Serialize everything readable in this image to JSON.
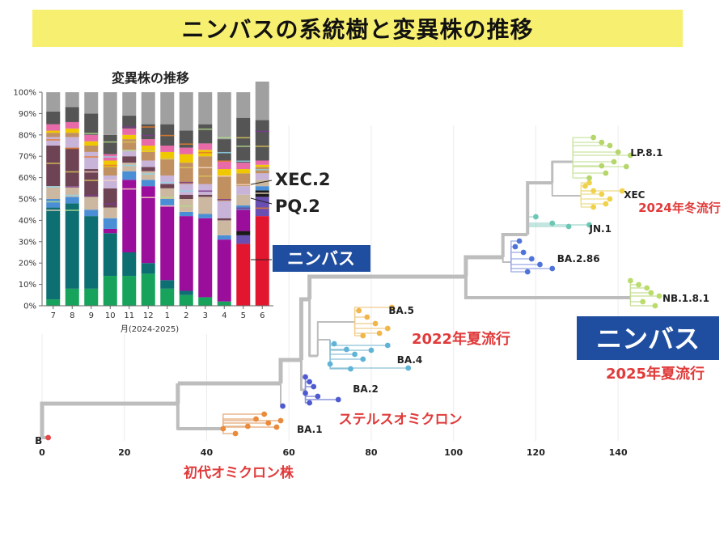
{
  "title": "ニンバスの系統樹と変異株の推移",
  "colors": {
    "title_bg": "#f7ef70",
    "tree_branch": "#bdbdbd",
    "label_red": "#e03a3a",
    "nimbus_box": "#1f4ea0",
    "nimbus_bar": "#e2172f",
    "pq2": "#6a4fb3",
    "xec2": "#1a1a1a"
  },
  "chart_data": [
    {
      "type": "bar",
      "stacked": true,
      "title": "変異株の推移",
      "xlabel": "月(2024-2025)",
      "ylabel": "",
      "ylim": [
        0,
        100
      ],
      "y_ticks": [
        "0%",
        "10%",
        "20%",
        "30%",
        "40%",
        "50%",
        "60%",
        "70%",
        "80%",
        "90%",
        "100%"
      ],
      "categories": [
        "7",
        "8",
        "9",
        "10",
        "11",
        "12",
        "1",
        "2",
        "3",
        "4",
        "5",
        "6"
      ],
      "series": [
        {
          "color": "#e2172f",
          "values": [
            0,
            0,
            0,
            0,
            0,
            0,
            0,
            0,
            0,
            0,
            29,
            42
          ]
        },
        {
          "color": "#6a4fb3",
          "values": [
            0,
            0,
            0,
            0,
            0,
            0,
            0,
            0,
            0,
            0,
            4,
            9
          ]
        },
        {
          "color": "#1a1a1a",
          "values": [
            0,
            0,
            0,
            0,
            0,
            0,
            0,
            0,
            0,
            0,
            2,
            3
          ]
        },
        {
          "color": "#17a35c",
          "values": [
            3,
            8,
            8,
            14,
            14,
            15,
            8,
            5,
            4,
            2,
            0,
            0
          ]
        },
        {
          "color": "#0e6f72",
          "values": [
            43,
            40,
            34,
            20,
            11,
            5,
            4,
            2,
            0,
            0,
            0,
            0
          ]
        },
        {
          "color": "#9b0e9b",
          "values": [
            0,
            0,
            0,
            2,
            34,
            36,
            35,
            35,
            37,
            29,
            10,
            0
          ]
        },
        {
          "color": "#4a8fd6",
          "values": [
            4,
            3,
            3,
            5,
            4,
            3,
            3,
            2,
            2,
            2,
            2,
            2
          ]
        },
        {
          "color": "#ccb8a0",
          "values": [
            6,
            5,
            6,
            5,
            4,
            4,
            5,
            6,
            8,
            7,
            5,
            3
          ]
        },
        {
          "color": "#6e4455",
          "values": [
            19,
            18,
            13,
            9,
            3,
            2,
            2,
            2,
            1,
            1,
            0,
            0
          ]
        },
        {
          "color": "#c9b4d9",
          "values": [
            4,
            5,
            8,
            6,
            3,
            3,
            4,
            5,
            5,
            8,
            4,
            3
          ]
        },
        {
          "color": "#c09060",
          "values": [
            2,
            2,
            3,
            4,
            5,
            4,
            8,
            10,
            13,
            12,
            6,
            3
          ]
        },
        {
          "color": "#f0c800",
          "values": [
            1,
            2,
            2,
            3,
            2,
            3,
            3,
            4,
            3,
            3,
            2,
            1
          ]
        },
        {
          "color": "#e86aa8",
          "values": [
            3,
            3,
            3,
            3,
            3,
            3,
            3,
            3,
            3,
            4,
            3,
            2
          ]
        },
        {
          "color": "#555555",
          "values": [
            6,
            7,
            10,
            9,
            6,
            7,
            10,
            8,
            9,
            10,
            21,
            19
          ]
        },
        {
          "color": "#a0a0a0",
          "values": [
            9,
            7,
            10,
            20,
            11,
            15,
            15,
            18,
            15,
            22,
            12,
            18
          ]
        }
      ],
      "annotations": [
        "XEC.2",
        "PQ.2",
        "ニンバス"
      ]
    },
    {
      "type": "tree",
      "x_ticks": [
        0,
        20,
        40,
        60,
        80,
        100,
        120,
        140
      ],
      "xlim": [
        0,
        150
      ],
      "clades": [
        {
          "label": "B",
          "x": 1
        },
        {
          "label": "BA.1",
          "x": 58
        },
        {
          "label": "BA.2",
          "x": 72
        },
        {
          "label": "BA.4",
          "x": 89
        },
        {
          "label": "BA.5",
          "x": 85
        },
        {
          "label": "BA.2.86",
          "x": 124
        },
        {
          "label": "JN.1",
          "x": 133
        },
        {
          "label": "XEC",
          "x": 141
        },
        {
          "label": "LP.8.1",
          "x": 143
        },
        {
          "label": "NB.1.8.1",
          "x": 150
        }
      ],
      "annotations": [
        {
          "text": "初代オミクロン株"
        },
        {
          "text": "ステルスオミクロン"
        },
        {
          "text": "2022年夏流行"
        },
        {
          "text": "2024年冬流行"
        },
        {
          "text": "ニンバス"
        },
        {
          "text": "2025年夏流行"
        }
      ]
    }
  ]
}
